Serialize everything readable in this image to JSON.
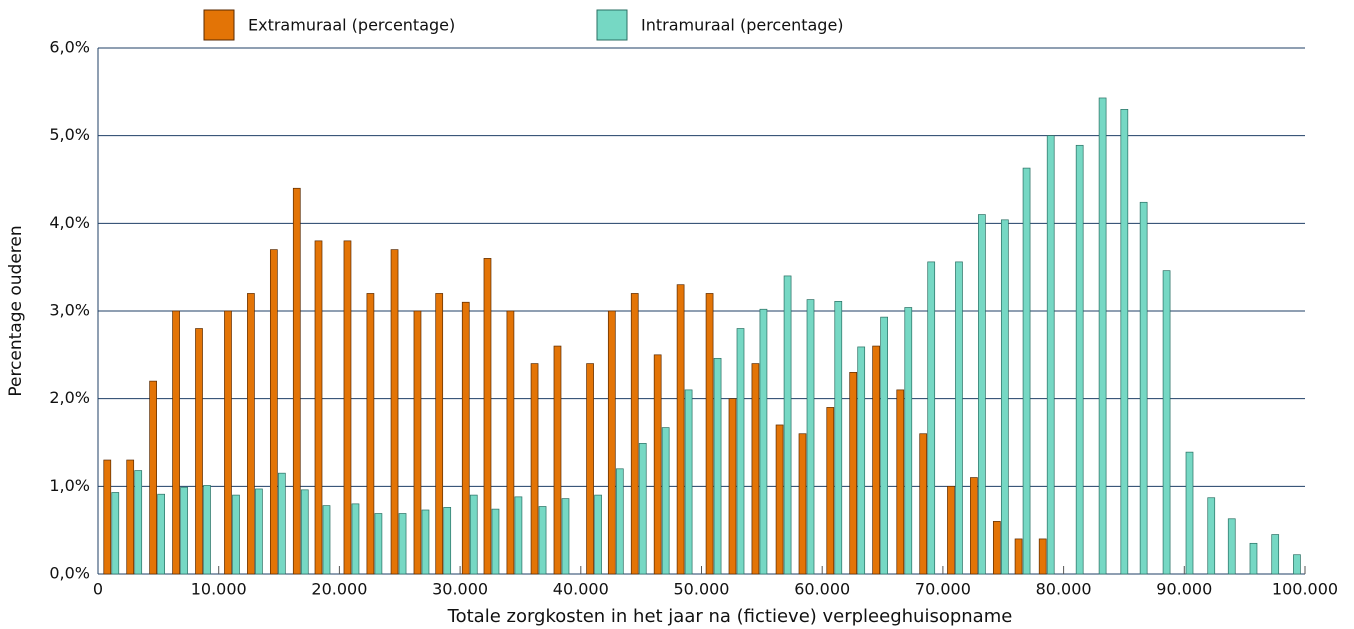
{
  "chart_data": {
    "type": "bar",
    "x_label": "Totale zorgkosten in het jaar na (fictieve) verpleeghuisopname",
    "y_label": "Percentage ouderen",
    "x": [
      1100,
      3000,
      4900,
      6800,
      8700,
      11100,
      13000,
      14900,
      16800,
      18600,
      21000,
      22900,
      24900,
      26800,
      28600,
      30800,
      32600,
      34500,
      36500,
      38400,
      41100,
      42900,
      44800,
      46700,
      48600,
      51000,
      52900,
      54800,
      56800,
      58700,
      61000,
      62900,
      64800,
      66800,
      68700,
      71000,
      72900,
      74800,
      76600,
      78600,
      81000,
      82900,
      84700,
      86300,
      88200,
      90100,
      91900,
      93600,
      95400,
      97200,
      99000
    ],
    "series": [
      {
        "name": "Extramuraal (percentage)",
        "color": "#e37406",
        "values": [
          1.3,
          1.3,
          2.2,
          3.0,
          2.8,
          3.0,
          3.2,
          3.7,
          4.4,
          3.8,
          3.8,
          3.2,
          3.7,
          3.0,
          3.2,
          3.1,
          3.6,
          3.0,
          2.4,
          2.6,
          2.4,
          3.0,
          3.2,
          2.5,
          3.3,
          3.2,
          2.0,
          2.4,
          1.7,
          1.6,
          1.9,
          2.3,
          2.6,
          2.1,
          1.6,
          1.0,
          1.1,
          0.6,
          0.4,
          0.4,
          null,
          null,
          null,
          null,
          null,
          null,
          null,
          null,
          null,
          null,
          null
        ]
      },
      {
        "name": "Intramuraal (percentage)",
        "color": "#76d8c4",
        "values": [
          0.93,
          1.18,
          0.91,
          0.99,
          1.01,
          0.9,
          0.97,
          1.15,
          0.96,
          0.78,
          0.8,
          0.69,
          0.69,
          0.73,
          0.76,
          0.9,
          0.74,
          0.88,
          0.77,
          0.86,
          0.9,
          1.2,
          1.49,
          1.67,
          2.1,
          2.46,
          2.8,
          3.02,
          3.4,
          3.13,
          3.11,
          2.59,
          2.93,
          3.04,
          3.56,
          3.56,
          4.1,
          4.04,
          4.63,
          5.0,
          4.89,
          5.43,
          5.3,
          4.24,
          3.46,
          1.39,
          0.87,
          0.63,
          0.35,
          0.45,
          0.22
        ]
      }
    ],
    "xlim": [
      0,
      100000
    ],
    "xticks": [
      0,
      {
        "value": 10000,
        "label": "10.000"
      },
      {
        "value": 20000,
        "label": "20.000"
      },
      {
        "value": 30000,
        "label": "30.000"
      },
      {
        "value": 40000,
        "label": "40.000"
      },
      {
        "value": 50000,
        "label": "50.000"
      },
      {
        "value": 60000,
        "label": "60.000"
      },
      {
        "value": 70000,
        "label": "70.000"
      },
      {
        "value": 80000,
        "label": "80.000"
      },
      {
        "value": 90000,
        "label": "90.000"
      },
      {
        "value": 100000,
        "label": "100.000"
      }
    ],
    "ylim": [
      0,
      6
    ],
    "yticks": [
      {
        "value": 0,
        "label": "0,0%"
      },
      {
        "value": 1,
        "label": "1,0%"
      },
      {
        "value": 2,
        "label": "2,0%"
      },
      {
        "value": 3,
        "label": "3,0%"
      },
      {
        "value": 4,
        "label": "4,0%"
      },
      {
        "value": 5,
        "label": "5,0%"
      },
      {
        "value": 6,
        "label": "6,0%"
      }
    ],
    "grid": true
  }
}
